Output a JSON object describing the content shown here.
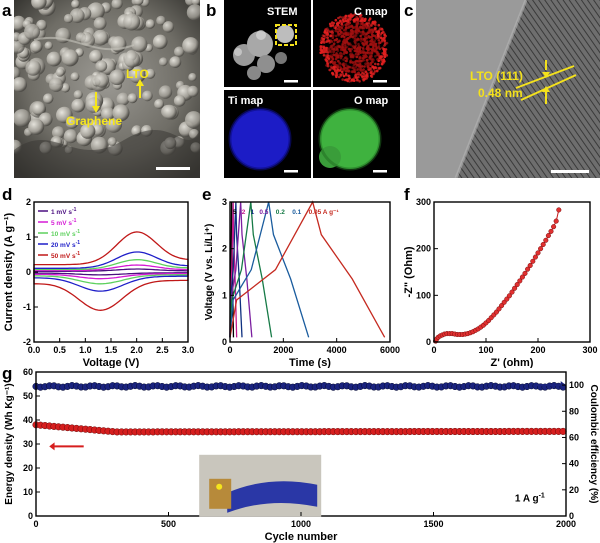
{
  "panels": {
    "a": {
      "letter": "a",
      "label_lto": "LTO",
      "label_graphene": "Graphene"
    },
    "b": {
      "letter": "b",
      "tiles": [
        "STEM",
        "C map",
        "Ti map",
        "O map"
      ]
    },
    "c": {
      "letter": "c",
      "annot_line1": "LTO (111)",
      "annot_line2": "0.48 nm"
    },
    "d": {
      "letter": "d"
    },
    "e": {
      "letter": "e"
    },
    "f": {
      "letter": "f"
    },
    "g": {
      "letter": "g",
      "inset_note": "1 A g",
      "inset_note_sup": "-1"
    }
  },
  "colors": {
    "cv_1": "#4b0f80",
    "cv_5": "#d51ad5",
    "cv_10": "#5ed15e",
    "cv_20": "#1e1ec8",
    "cv_50": "#c01818",
    "ec_5": "#000000",
    "ec_2": "#c41c8e",
    "ec_1": "#0f3080",
    "ec_05": "#7b1fa0",
    "ec_02": "#167a46",
    "ec_01": "#1a5c9e",
    "ec_005": "#c52a20",
    "energy": "#d61e1e",
    "ce": "#1a237e"
  },
  "chart_data": [
    {
      "type": "line",
      "id": "cv",
      "xlabel": "Voltage (V)",
      "ylabel": "Current density (A g⁻¹)",
      "xlim": [
        0,
        3.0
      ],
      "ylim": [
        -2,
        2
      ],
      "xticks": [
        "0.0",
        "0.5",
        "1.0",
        "1.5",
        "2.0",
        "2.5",
        "3.0"
      ],
      "yticks": [
        "-2",
        "-1",
        "0",
        "1",
        "2"
      ],
      "series": [
        {
          "name": "1 mV s",
          "sup": "-1",
          "peak": 0.1,
          "width": 0.06
        },
        {
          "name": "5 mV s",
          "sup": "-1",
          "peak": 0.25,
          "width": 0.12
        },
        {
          "name": "10 mV s",
          "sup": "-1",
          "peak": 0.45,
          "width": 0.2
        },
        {
          "name": "20 mV s",
          "sup": "-1",
          "peak": 0.75,
          "width": 0.3
        },
        {
          "name": "50 mV s",
          "sup": "-1",
          "peak": 1.5,
          "width": 0.6
        }
      ]
    },
    {
      "type": "line",
      "id": "gcd",
      "xlabel": "Time (s)",
      "ylabel": "Voltage (V vs. Li/Li⁺)",
      "xlim": [
        0,
        6000
      ],
      "ylim": [
        0,
        3
      ],
      "xticks": [
        "0",
        "2000",
        "4000",
        "6000"
      ],
      "yticks": [
        "0",
        "1",
        "2",
        "3"
      ],
      "legend_order": [
        "5",
        "2",
        "1",
        "0.5",
        "0.2",
        "0.1",
        "0.05 A g⁻¹"
      ],
      "series": [
        {
          "name": "5",
          "charge": 60,
          "discharge": 130
        },
        {
          "name": "2",
          "charge": 120,
          "discharge": 250
        },
        {
          "name": "1",
          "charge": 220,
          "discharge": 450
        },
        {
          "name": "0.5",
          "charge": 400,
          "discharge": 820
        },
        {
          "name": "0.2",
          "charge": 780,
          "discharge": 1560
        },
        {
          "name": "0.1",
          "charge": 1450,
          "discharge": 2950
        },
        {
          "name": "0.05",
          "charge": 3100,
          "discharge": 5800
        }
      ]
    },
    {
      "type": "scatter",
      "id": "eis",
      "xlabel": "Z' (ohm)",
      "ylabel": "-Z\" (Ohm)",
      "xlim": [
        0,
        300
      ],
      "ylim": [
        0,
        300
      ],
      "xticks": [
        "0",
        "100",
        "200",
        "300"
      ],
      "yticks": [
        "0",
        "100",
        "200",
        "300"
      ],
      "points_x": [
        3,
        5,
        8,
        12,
        16,
        20,
        25,
        30,
        35,
        40,
        45,
        50,
        55,
        60,
        65,
        70,
        75,
        80,
        85,
        90,
        95,
        100,
        105,
        110,
        115,
        120,
        125,
        130,
        135,
        140,
        145,
        150,
        155,
        160,
        165,
        170,
        175,
        180,
        185,
        190,
        195,
        200,
        205,
        210,
        215,
        220,
        225,
        230,
        235,
        240
      ],
      "points_y": [
        2,
        6,
        10,
        13,
        15,
        17,
        18,
        18,
        18,
        17,
        16,
        16,
        16,
        17,
        18,
        20,
        22,
        25,
        28,
        32,
        36,
        41,
        46,
        52,
        58,
        64,
        71,
        78,
        85,
        92,
        99,
        107,
        115,
        123,
        131,
        139,
        147,
        156,
        164,
        173,
        182,
        191,
        200,
        209,
        218,
        228,
        237,
        247,
        259,
        283
      ]
    },
    {
      "type": "scatter",
      "id": "cycling",
      "xlabel": "Cycle number",
      "ylabel_left": "Energy density (Wh Kg⁻¹)",
      "ylabel_right": "Coulombic efficiency (%)",
      "xlim": [
        0,
        2000
      ],
      "ylim_left": [
        0,
        60
      ],
      "ylim_right": [
        0,
        110
      ],
      "xticks": [
        "0",
        "500",
        "1000",
        "1500",
        "2000"
      ],
      "yticks_left": [
        "0",
        "10",
        "20",
        "30",
        "40",
        "50",
        "60"
      ],
      "yticks_right": [
        "0",
        "20",
        "40",
        "60",
        "80",
        "100"
      ],
      "energy_density_start": 38,
      "energy_density_end": 35,
      "coulombic_efficiency": 99
    }
  ]
}
